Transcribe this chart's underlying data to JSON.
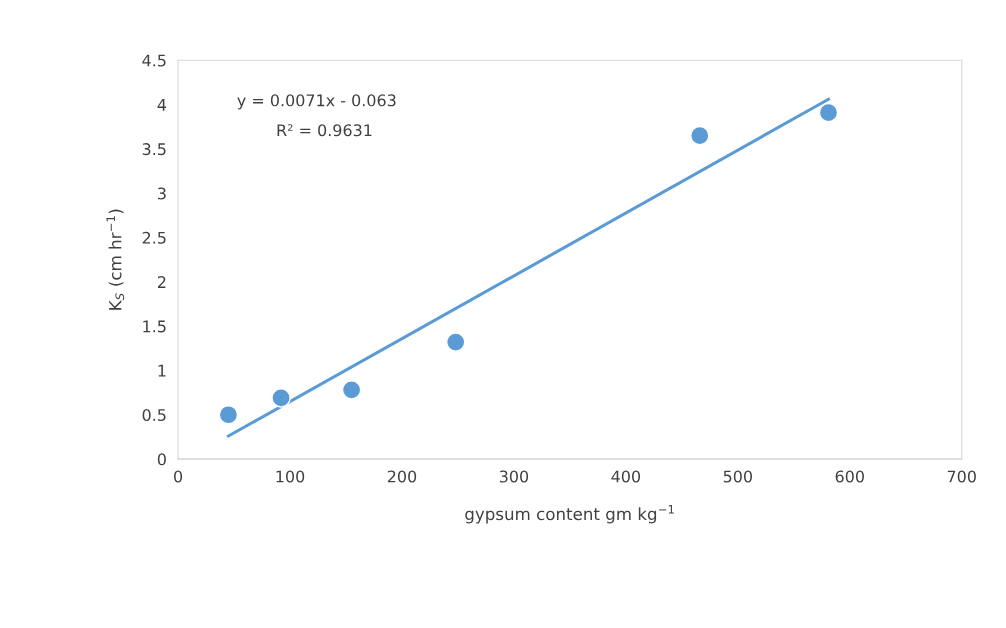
{
  "chart_data": {
    "type": "scatter",
    "xlabel": "gypsum content gm kg$^{−1}$",
    "ylabel": "K$_{S}$ (cm hr$^{−1}$)",
    "series": [
      {
        "color": "#5b9bd5",
        "marker": "circle",
        "x": [
          45,
          92,
          155,
          248,
          466,
          581
        ],
        "values": [
          0.5,
          0.69,
          0.78,
          1.32,
          3.65,
          3.91
        ]
      },
      {
        "type": "line",
        "color": "#5b9bd5",
        "x": [
          45,
          581
        ],
        "values": [
          0.26,
          4.06
        ]
      }
    ],
    "annotations": [
      "y = 0.0071x - 0.063",
      "R² = 0.9631"
    ],
    "xlim": [
      0,
      700
    ],
    "xticks": [
      0,
      100,
      200,
      300,
      400,
      500,
      600,
      700
    ],
    "ylim": [
      0,
      4.5
    ],
    "yticks": [
      0,
      0.5,
      1,
      1.5,
      2,
      2.5,
      3,
      3.5,
      4,
      4.5
    ],
    "grid": false,
    "legend": false
  }
}
